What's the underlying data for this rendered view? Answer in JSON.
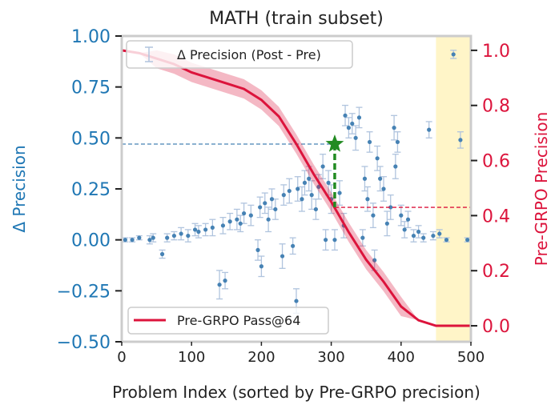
{
  "chart_data": {
    "type": "scatter",
    "title": "MATH (train subset)",
    "xlabel": "Problem Index (sorted by Pre-GRPO precision)",
    "ylabel_left": "Δ Precision",
    "ylabel_right": "Pre-GRPO Precision",
    "xlim": [
      0,
      500
    ],
    "ylim_left": [
      -0.5,
      1.0
    ],
    "ylim_right": [
      -0.058,
      1.052
    ],
    "x_ticks": [
      "0",
      "100",
      "200",
      "300",
      "400",
      "500"
    ],
    "left_ticks": [
      "−0.50",
      "−0.25",
      "0.00",
      "0.25",
      "0.50",
      "0.75",
      "1.00"
    ],
    "right_ticks": [
      "0.0",
      "0.2",
      "0.4",
      "0.6",
      "0.8",
      "1.0"
    ],
    "grid": false,
    "colors": {
      "delta": "#4682b4",
      "delta_err": "#b0c4de",
      "pass": "#dc143c",
      "left_axis": "#1f77b4",
      "right_axis": "#dc143c",
      "shade": "#fff5c8",
      "marker": "#228b22"
    },
    "shaded_region_x": [
      450,
      500
    ],
    "series": [
      {
        "name": "Δ Precision (Post - Pre)",
        "axis": "left",
        "kind": "errorbar-scatter",
        "points": [
          [
            5,
            0.0,
            0.01
          ],
          [
            15,
            0.0,
            0.01
          ],
          [
            25,
            0.01,
            0.01
          ],
          [
            40,
            0.0,
            0.02
          ],
          [
            45,
            0.01,
            0.02
          ],
          [
            58,
            -0.07,
            0.02
          ],
          [
            65,
            0.01,
            0.02
          ],
          [
            75,
            0.02,
            0.02
          ],
          [
            85,
            0.03,
            0.03
          ],
          [
            95,
            0.02,
            0.03
          ],
          [
            105,
            0.05,
            0.03
          ],
          [
            110,
            0.04,
            0.03
          ],
          [
            120,
            0.05,
            0.03
          ],
          [
            130,
            0.06,
            0.04
          ],
          [
            140,
            -0.22,
            0.07
          ],
          [
            145,
            0.07,
            0.04
          ],
          [
            148,
            -0.2,
            0.04
          ],
          [
            155,
            0.09,
            0.04
          ],
          [
            165,
            0.1,
            0.05
          ],
          [
            170,
            0.08,
            0.04
          ],
          [
            175,
            0.13,
            0.05
          ],
          [
            185,
            0.12,
            0.05
          ],
          [
            195,
            -0.05,
            0.05
          ],
          [
            198,
            0.16,
            0.05
          ],
          [
            200,
            -0.13,
            0.05
          ],
          [
            205,
            0.18,
            0.05
          ],
          [
            210,
            0.1,
            0.06
          ],
          [
            215,
            0.2,
            0.05
          ],
          [
            220,
            0.15,
            0.05
          ],
          [
            230,
            -0.08,
            0.06
          ],
          [
            232,
            0.22,
            0.05
          ],
          [
            240,
            0.24,
            0.06
          ],
          [
            245,
            -0.03,
            0.04
          ],
          [
            250,
            -0.3,
            0.06
          ],
          [
            252,
            0.25,
            0.06
          ],
          [
            258,
            0.2,
            0.06
          ],
          [
            262,
            0.28,
            0.06
          ],
          [
            268,
            0.3,
            0.06
          ],
          [
            272,
            0.22,
            0.07
          ],
          [
            278,
            0.15,
            0.05
          ],
          [
            282,
            0.26,
            0.06
          ],
          [
            288,
            0.36,
            0.06
          ],
          [
            292,
            -0.0,
            0.05
          ],
          [
            296,
            0.28,
            0.06
          ],
          [
            300,
            0.2,
            0.07
          ],
          [
            305,
            0.0,
            0.05
          ],
          [
            312,
            0.23,
            0.06
          ],
          [
            318,
            0.07,
            0.06
          ],
          [
            320,
            0.61,
            0.05
          ],
          [
            325,
            0.55,
            0.05
          ],
          [
            330,
            0.57,
            0.05
          ],
          [
            335,
            0.5,
            0.06
          ],
          [
            340,
            0.6,
            0.05
          ],
          [
            345,
            0.01,
            0.04
          ],
          [
            348,
            0.3,
            0.06
          ],
          [
            352,
            0.2,
            0.06
          ],
          [
            355,
            0.48,
            0.05
          ],
          [
            360,
            0.12,
            0.06
          ],
          [
            362,
            -0.1,
            0.05
          ],
          [
            366,
            0.4,
            0.06
          ],
          [
            370,
            0.3,
            0.06
          ],
          [
            375,
            0.25,
            0.06
          ],
          [
            380,
            0.08,
            0.06
          ],
          [
            385,
            0.16,
            0.06
          ],
          [
            390,
            0.55,
            0.06
          ],
          [
            392,
            0.36,
            0.06
          ],
          [
            395,
            0.48,
            0.05
          ],
          [
            400,
            0.12,
            0.05
          ],
          [
            405,
            0.05,
            0.04
          ],
          [
            410,
            0.1,
            0.04
          ],
          [
            418,
            0.02,
            0.03
          ],
          [
            425,
            0.04,
            0.03
          ],
          [
            432,
            0.01,
            0.02
          ],
          [
            440,
            0.54,
            0.04
          ],
          [
            446,
            0.02,
            0.02
          ],
          [
            455,
            0.03,
            0.02
          ],
          [
            465,
            0.0,
            0.01
          ],
          [
            475,
            0.91,
            0.02
          ],
          [
            485,
            0.49,
            0.04
          ],
          [
            495,
            0.0,
            0.01
          ]
        ]
      },
      {
        "name": "Pre-GRPO Pass@64",
        "axis": "right",
        "kind": "line",
        "x": [
          0,
          25,
          50,
          75,
          100,
          125,
          150,
          175,
          200,
          225,
          250,
          275,
          300,
          325,
          350,
          375,
          400,
          425,
          450,
          475,
          500
        ],
        "y": [
          1.0,
          0.99,
          0.97,
          0.95,
          0.92,
          0.9,
          0.88,
          0.86,
          0.82,
          0.76,
          0.66,
          0.55,
          0.45,
          0.34,
          0.24,
          0.16,
          0.07,
          0.02,
          0.0,
          0.0,
          0.0
        ]
      }
    ],
    "annotations": {
      "star": {
        "x": 305,
        "y_left": 0.47
      },
      "blue_hline_left": 0.47,
      "red_hline_right": 0.43
    }
  }
}
